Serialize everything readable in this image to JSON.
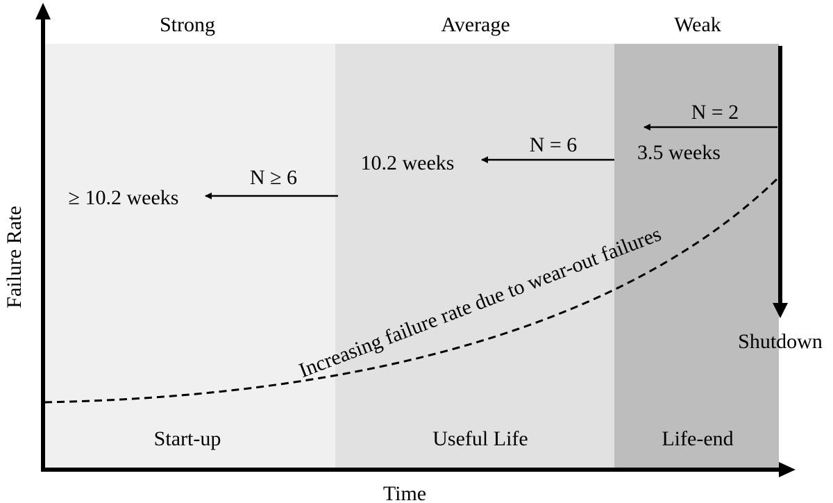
{
  "axes": {
    "y_label": "Failure Rate",
    "x_label": "Time"
  },
  "regions": [
    {
      "id": "start-up",
      "header": "Strong",
      "phase": "Start-up",
      "fill": "#f0f0f0"
    },
    {
      "id": "useful-life",
      "header": "Average",
      "phase": "Useful Life",
      "fill": "#e1e1e1"
    },
    {
      "id": "life-end",
      "header": "Weak",
      "phase": "Life-end",
      "fill": "#bdbdbd"
    }
  ],
  "intervals": [
    {
      "id": "weak",
      "n_label": "N = 2",
      "duration": "3.5 weeks"
    },
    {
      "id": "average",
      "n_label": "N = 6",
      "duration": "10.2 weeks"
    },
    {
      "id": "strong",
      "n_label": "N ≥ 6",
      "duration": "≥ 10.2 weeks"
    }
  ],
  "shutdown_label": "Shutdown",
  "curve_label": "Increasing failure rate due to wear-out failures",
  "colors": {
    "axis": "#000000",
    "curve": "#000000"
  }
}
